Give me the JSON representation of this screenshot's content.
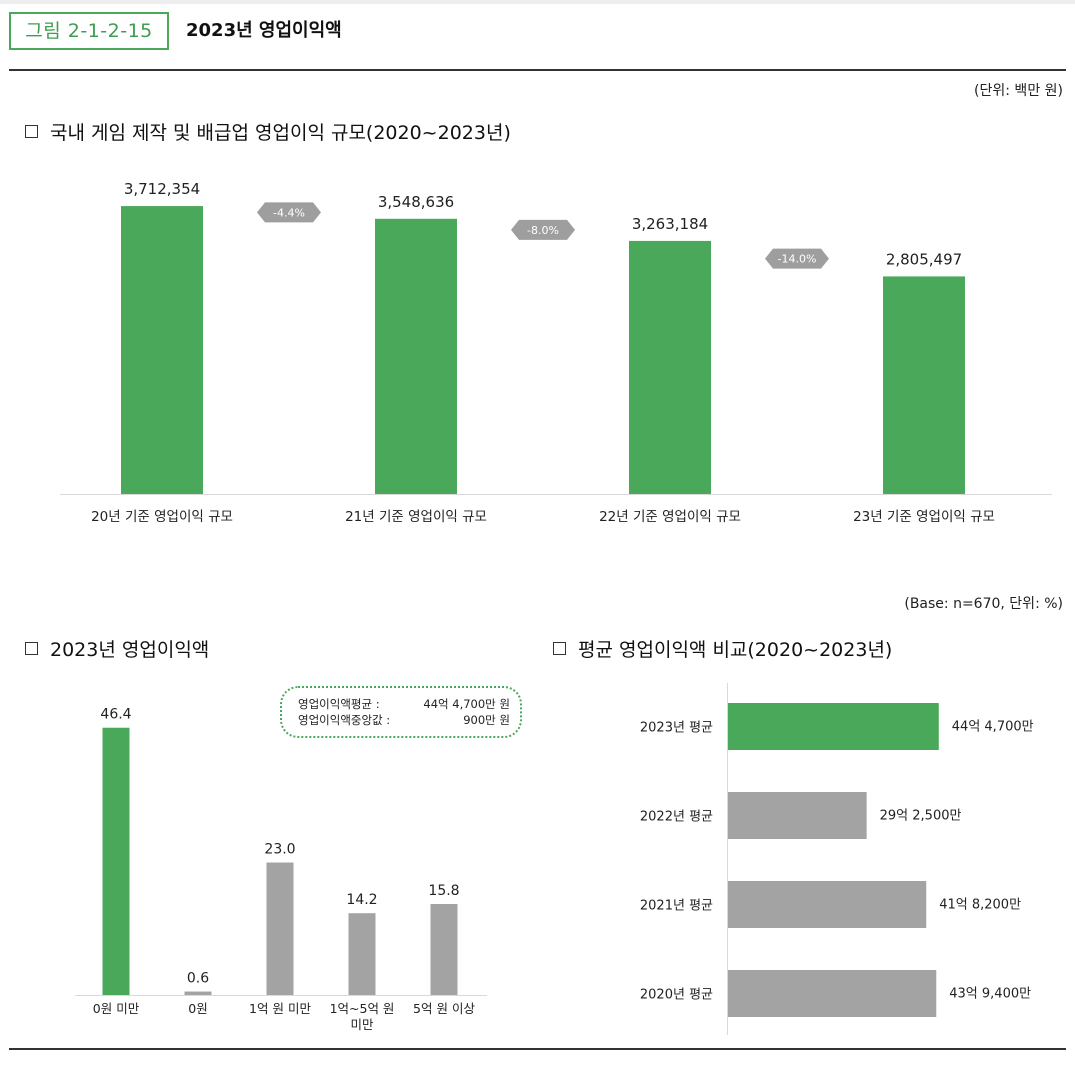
{
  "header": {
    "figure_label": "그림 2-1-2-15",
    "title": "2023년 영업이익액"
  },
  "top_section": {
    "unit": "(단위: 백만 원)",
    "title": "국내 게임 제작 및 배급업 영업이익 규모(2020~2023년)"
  },
  "bottom_meta": {
    "unit": "(Base: n=670, 단위: %)"
  },
  "left_section": {
    "title": "2023년 영업이익액",
    "callout": {
      "avg_label": "영업이익액평균 :",
      "avg_value": "44억 4,700만 원",
      "median_label": "영업이익액중앙값 :",
      "median_value": "900만 원"
    }
  },
  "right_section": {
    "title": "평균 영업이익액 비교(2020~2023년)"
  },
  "colors": {
    "green": "#4aa85a",
    "gray": "#a3a3a3",
    "arrow": "#9e9e9e"
  },
  "chart_data": [
    {
      "type": "bar",
      "title": "국내 게임 제작 및 배급업 영업이익 규모(2020~2023년)",
      "categories": [
        "20년 기준 영업이익 규모",
        "21년 기준 영업이익 규모",
        "22년 기준 영업이익 규모",
        "23년 기준 영업이익 규모"
      ],
      "values": [
        3712354,
        3548636,
        3263184,
        2805497
      ],
      "value_labels": [
        "3,712,354",
        "3,548,636",
        "3,263,184",
        "2,805,497"
      ],
      "change_labels": [
        "-4.4%",
        "-8.0%",
        "-14.0%"
      ],
      "ylim": [
        0,
        4500000
      ],
      "grid": false
    },
    {
      "type": "bar",
      "title": "2023년 영업이익액",
      "categories": [
        "0원 미만",
        "0원",
        "1억 원 미만",
        "1억~5억 원|미만",
        "5억 원 이상"
      ],
      "values": [
        46.4,
        0.6,
        23.0,
        14.2,
        15.8
      ],
      "value_labels": [
        "46.4",
        "0.6",
        "23.0",
        "14.2",
        "15.8"
      ],
      "highlight": [
        true,
        false,
        false,
        false,
        false
      ],
      "ylim": [
        0,
        50
      ],
      "grid": false
    },
    {
      "type": "bar",
      "orientation": "horizontal",
      "title": "평균 영업이익액 비교(2020~2023년)",
      "categories": [
        "2023년 평균",
        "2022년 평균",
        "2021년 평균",
        "2020년 평균"
      ],
      "values": [
        44.47,
        29.25,
        41.82,
        43.94
      ],
      "value_labels": [
        "44억 4,700만",
        "29억 2,500만",
        "41억 8,200만",
        "43억 9,400만"
      ],
      "highlight": [
        true,
        false,
        false,
        false
      ],
      "xlim": [
        0,
        50
      ],
      "grid": false
    }
  ]
}
